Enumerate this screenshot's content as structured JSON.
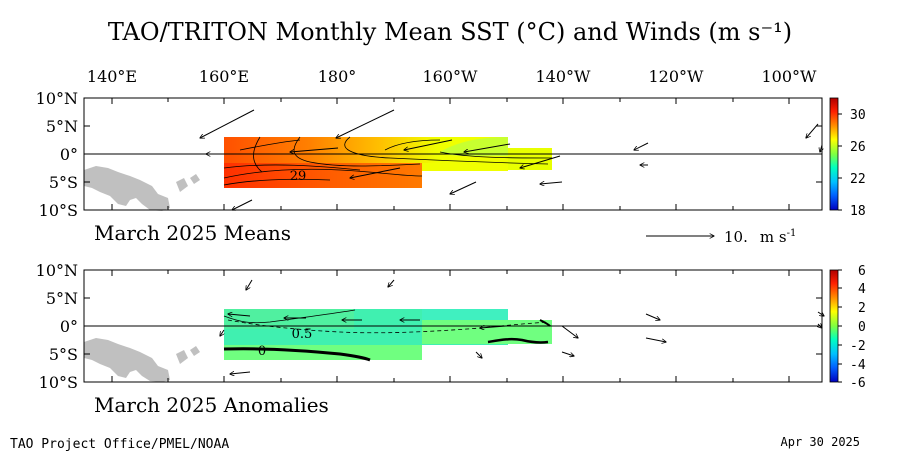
{
  "title": "TAO/TRITON Monthly Mean SST (°C) and Winds (m s⁻¹)",
  "longitude_ticks": [
    "140°E",
    "160°E",
    "180°",
    "160°W",
    "140°W",
    "120°W",
    "100°W"
  ],
  "latitude_ticks": [
    "10°N",
    "5°N",
    "0°",
    "5°S",
    "10°S"
  ],
  "panels": [
    {
      "label": "March 2025 Means",
      "colorbar_ticks": [
        "30",
        "26",
        "22",
        "18"
      ],
      "contour_labels": [
        "29"
      ]
    },
    {
      "label": "March 2025 Anomalies",
      "colorbar_ticks": [
        "6",
        "4",
        "2",
        "0",
        "-2",
        "-4",
        "-6"
      ],
      "contour_labels": [
        "0.5",
        "0"
      ]
    }
  ],
  "wind_scale": {
    "value": "10.",
    "unit_base": "m s",
    "unit_exp": "-1"
  },
  "footer": {
    "left": "TAO Project Office/PMEL/NOAA",
    "right": "Apr 30 2025"
  },
  "colors": {
    "land": "#c0c0c0",
    "warm": "#ff5a00",
    "anomaly_fill": "#40f0b0"
  }
}
